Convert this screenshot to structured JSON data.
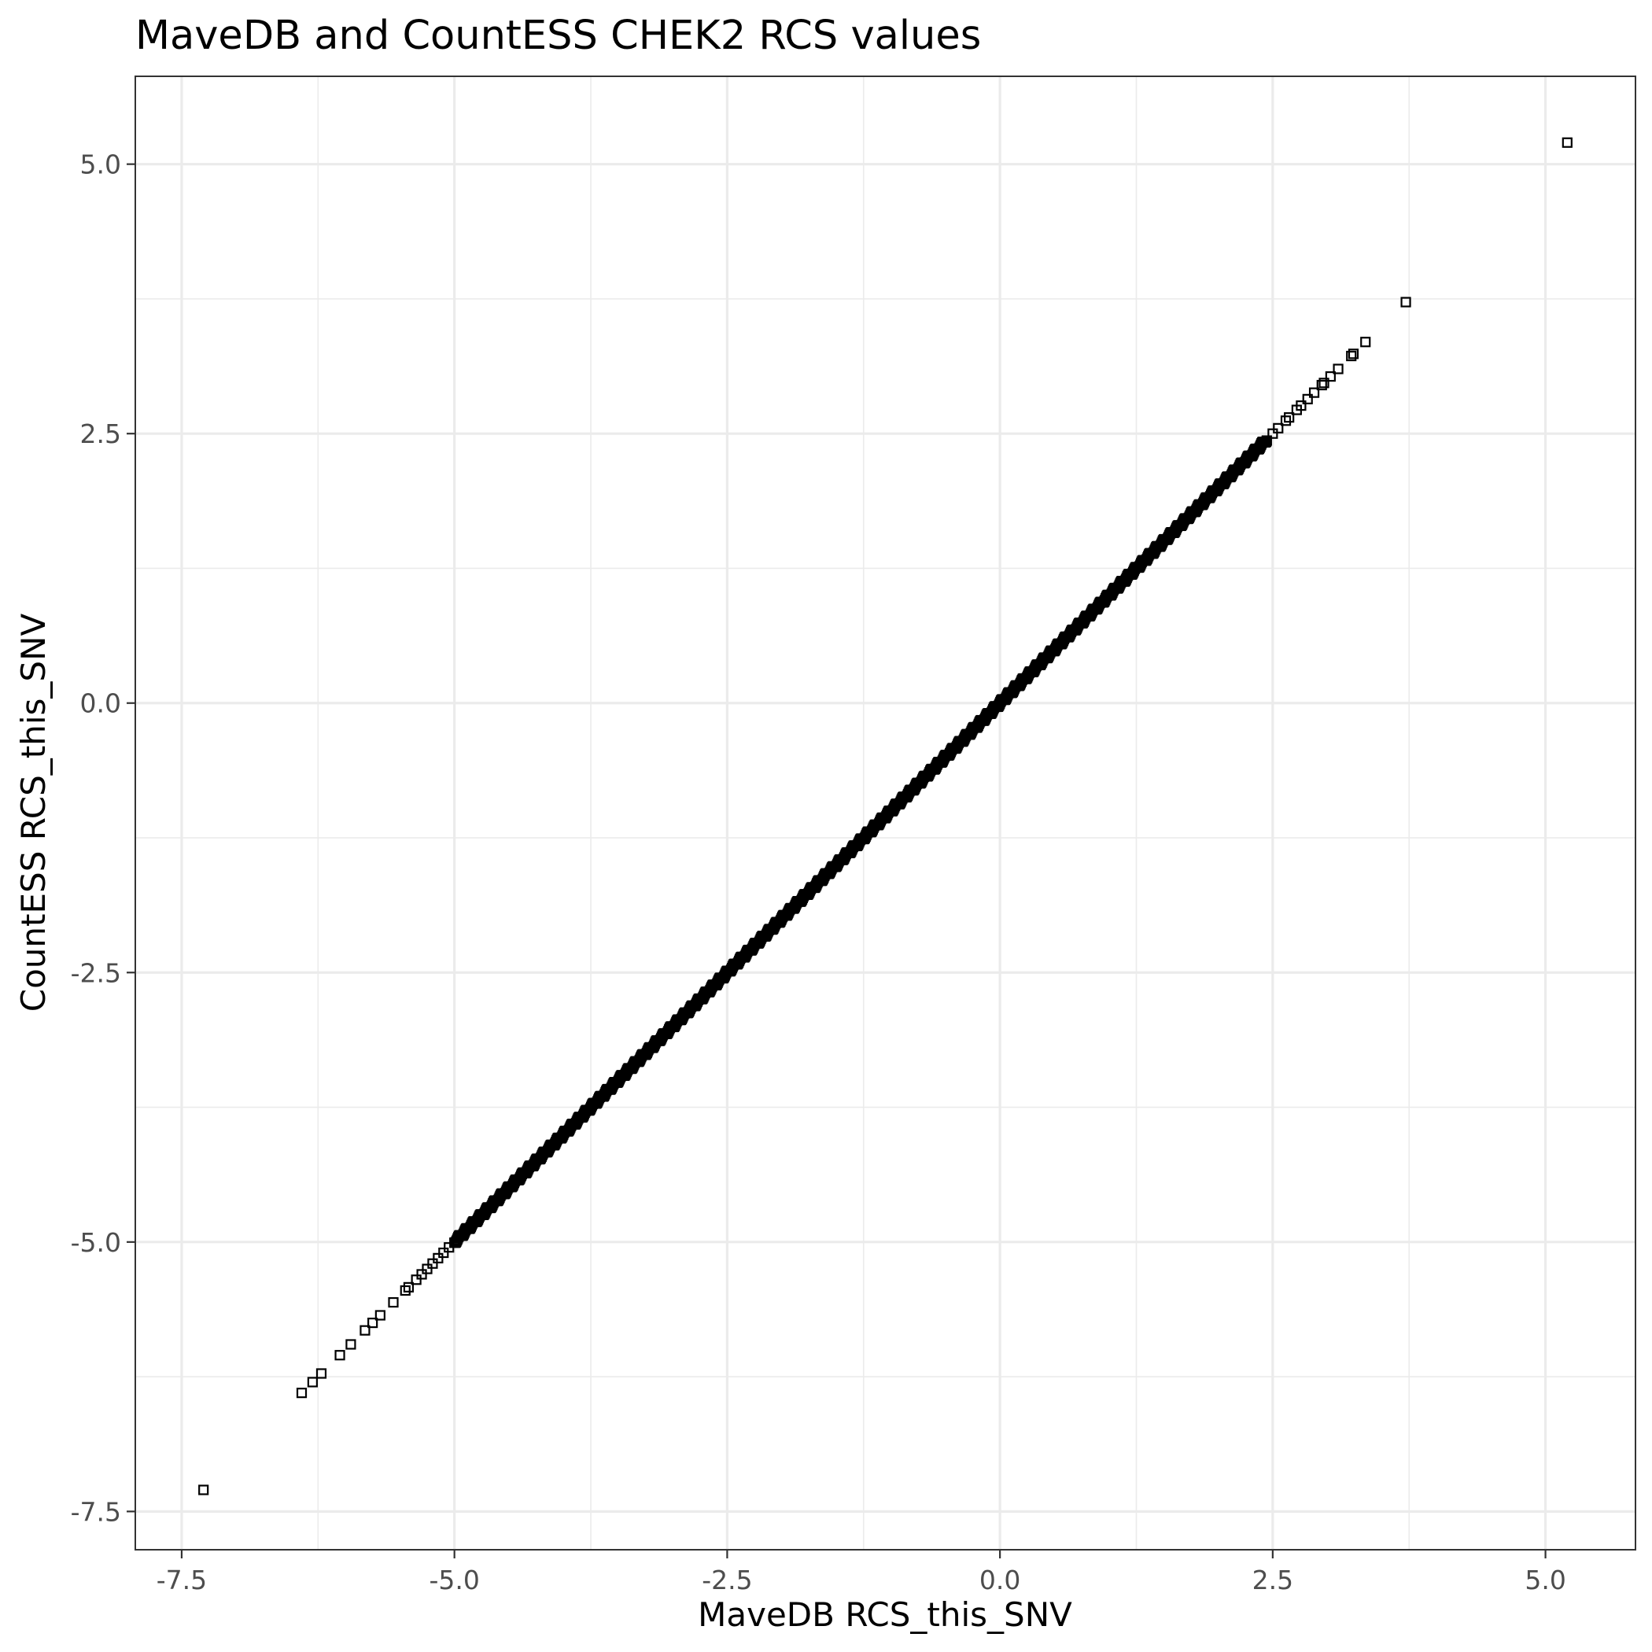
{
  "chart_data": {
    "type": "scatter",
    "title": "MaveDB and CountESS CHEK2 RCS values",
    "xlabel": "MaveDB RCS_this_SNV",
    "ylabel": "CountESS RCS_this_SNV",
    "xlim": [
      -7.925,
      5.825
    ],
    "ylim": [
      -7.855,
      5.815
    ],
    "x_ticks": [
      -7.5,
      -5.0,
      -2.5,
      0.0,
      2.5,
      5.0
    ],
    "x_tick_labels": [
      "-7.5",
      "-5.0",
      "-2.5",
      "0.0",
      "2.5",
      "5.0"
    ],
    "y_ticks": [
      -7.5,
      -5.0,
      -2.5,
      0.0,
      2.5,
      5.0
    ],
    "y_tick_labels": [
      "-7.5",
      "-5.0",
      "-2.5",
      "0.0",
      "2.5",
      "5.0"
    ],
    "grid": true,
    "marker": "open-square",
    "point_color": "#000000",
    "series": [
      {
        "points": [
          [
            -7.3,
            -7.3
          ],
          [
            -6.4,
            -6.4
          ],
          [
            -6.3,
            -6.3
          ],
          [
            -6.22,
            -6.22
          ],
          [
            -6.05,
            -6.05
          ],
          [
            -5.95,
            -5.95
          ],
          [
            -5.82,
            -5.82
          ],
          [
            -5.75,
            -5.75
          ],
          [
            -5.68,
            -5.68
          ],
          [
            -5.56,
            -5.56
          ],
          [
            -5.45,
            -5.45
          ],
          [
            -5.42,
            -5.42
          ],
          [
            -5.35,
            -5.35
          ],
          [
            -5.3,
            -5.3
          ],
          [
            -5.25,
            -5.25
          ],
          [
            -5.2,
            -5.2
          ],
          [
            -5.15,
            -5.15
          ],
          [
            -5.1,
            -5.1
          ],
          [
            -5.05,
            -5.05
          ],
          [
            2.5,
            2.5
          ],
          [
            2.55,
            2.55
          ],
          [
            2.62,
            2.62
          ],
          [
            2.65,
            2.65
          ],
          [
            2.72,
            2.72
          ],
          [
            2.76,
            2.76
          ],
          [
            2.82,
            2.82
          ],
          [
            2.88,
            2.88
          ],
          [
            2.95,
            2.95
          ],
          [
            2.97,
            2.97
          ],
          [
            3.03,
            3.03
          ],
          [
            3.1,
            3.1
          ],
          [
            3.22,
            3.22
          ],
          [
            3.24,
            3.24
          ],
          [
            3.35,
            3.35
          ],
          [
            3.72,
            3.72
          ],
          [
            5.2,
            5.2
          ]
        ],
        "dense_segment": {
          "x_start": -5.0,
          "x_end": 2.45,
          "slope": 1.0,
          "intercept": 0.0
        }
      }
    ]
  }
}
